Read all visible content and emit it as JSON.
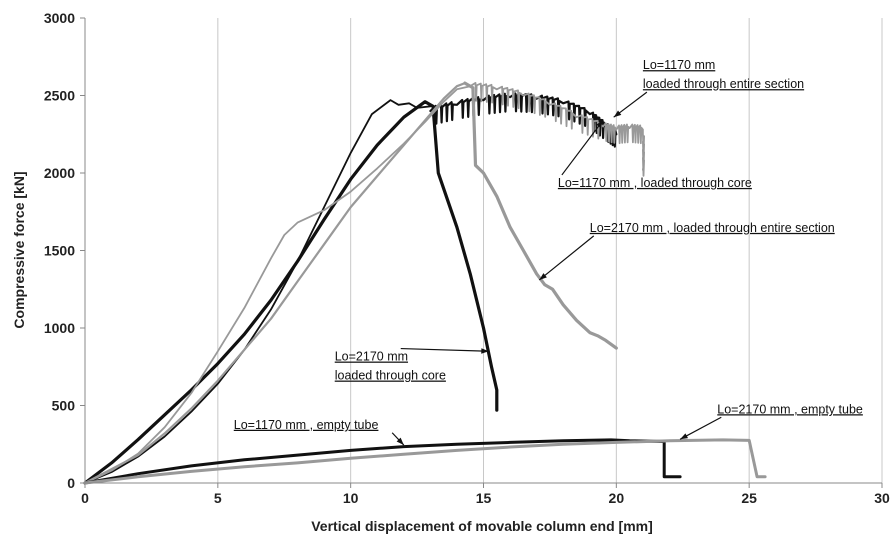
{
  "chart_data": {
    "type": "line",
    "xlabel": "Vertical displacement of movable column end [mm]",
    "ylabel": "Compressive force [kN]",
    "xlim": [
      0,
      30
    ],
    "ylim": [
      0,
      3000
    ],
    "xticks": [
      "0",
      "5",
      "10",
      "15",
      "20",
      "25",
      "30"
    ],
    "yticks": [
      "0",
      "500",
      "1000",
      "1500",
      "2000",
      "2500",
      "3000"
    ],
    "grid": "vertical",
    "legend": "none",
    "colors": {
      "black": "#111111",
      "gray": "#999999"
    },
    "series": [
      {
        "color": "black",
        "width": 3.2,
        "jagged": false,
        "x": [
          0,
          1,
          2,
          3,
          4,
          5,
          6,
          7,
          8,
          9,
          10,
          11,
          12,
          12.8,
          13.1,
          13.3,
          13.6,
          14.0,
          14.5,
          15.0,
          15.3,
          15.5,
          15.5
        ],
        "y": [
          0,
          130,
          280,
          440,
          600,
          770,
          960,
          1180,
          1430,
          1700,
          1960,
          2180,
          2360,
          2460,
          2430,
          2000,
          1850,
          1650,
          1350,
          1000,
          750,
          600,
          470
        ]
      },
      {
        "color": "black",
        "width": 1.8,
        "jagged": false,
        "x": [
          0,
          1,
          2,
          3,
          4,
          5,
          6,
          7,
          8,
          9,
          10,
          10.8,
          11.5,
          11.8,
          12.2,
          12.5,
          13.0
        ],
        "y": [
          0,
          70,
          170,
          300,
          460,
          640,
          860,
          1120,
          1430,
          1780,
          2130,
          2380,
          2470,
          2440,
          2450,
          2420,
          2430
        ]
      },
      {
        "color": "black",
        "width": 2.2,
        "jagged": true,
        "x": [
          13.0,
          14,
          15,
          16,
          17,
          18,
          19,
          19.6,
          20.0
        ],
        "y": [
          2400,
          2440,
          2470,
          2490,
          2480,
          2450,
          2380,
          2300,
          2250
        ]
      },
      {
        "color": "gray",
        "width": 2.2,
        "jagged": false,
        "x": [
          0,
          1,
          2,
          3,
          4,
          5,
          6,
          7,
          8,
          9,
          10,
          11,
          12,
          12.8,
          13.5,
          14.0,
          14.3
        ],
        "y": [
          0,
          90,
          180,
          320,
          480,
          660,
          860,
          1060,
          1300,
          1540,
          1780,
          1980,
          2180,
          2340,
          2480,
          2560,
          2580
        ]
      },
      {
        "color": "gray",
        "width": 3.2,
        "jagged": false,
        "x": [
          14.3,
          14.6,
          14.7,
          15.0,
          15.5,
          16.0,
          16.5,
          17.0,
          17.3,
          17.6,
          18.0,
          18.5,
          19.0,
          19.3,
          19.6,
          20.0
        ],
        "y": [
          2580,
          2550,
          2050,
          2000,
          1850,
          1650,
          1500,
          1350,
          1280,
          1250,
          1150,
          1050,
          970,
          950,
          920,
          870
        ]
      },
      {
        "color": "gray",
        "width": 1.8,
        "jagged": false,
        "x": [
          0,
          1,
          2,
          3,
          4,
          5,
          6,
          7,
          7.5,
          8,
          9,
          10,
          11,
          12,
          12.8,
          13.5,
          14.0,
          14.5
        ],
        "y": [
          0,
          80,
          190,
          360,
          580,
          850,
          1130,
          1450,
          1600,
          1680,
          1760,
          1880,
          2030,
          2190,
          2330,
          2460,
          2540,
          2560
        ]
      },
      {
        "color": "gray",
        "width": 1.8,
        "jagged": true,
        "x": [
          14.5,
          15.5,
          16.5,
          17.5,
          18.5,
          19.5,
          20.0,
          20.5,
          21.0,
          21.0
        ],
        "y": [
          2560,
          2540,
          2500,
          2440,
          2360,
          2300,
          2280,
          2290,
          2280,
          2020
        ]
      },
      {
        "color": "black",
        "width": 3.0,
        "jagged": false,
        "x": [
          0,
          2,
          4,
          6,
          8,
          10,
          12,
          14,
          16,
          18,
          19.8,
          20.5,
          21.8,
          21.8,
          22.4
        ],
        "y": [
          0,
          60,
          110,
          150,
          180,
          210,
          235,
          250,
          262,
          272,
          278,
          272,
          268,
          40,
          40
        ]
      },
      {
        "color": "gray",
        "width": 3.0,
        "jagged": false,
        "x": [
          0,
          2,
          4,
          6,
          8,
          10,
          12,
          14,
          16,
          18,
          20,
          22,
          24,
          25.0,
          25.3,
          25.6
        ],
        "y": [
          0,
          40,
          75,
          105,
          130,
          160,
          185,
          210,
          232,
          250,
          262,
          272,
          278,
          275,
          40,
          40
        ]
      }
    ],
    "annotations": [
      {
        "lines": [
          "Lo=1170 mm",
          "loaded  through  entire  section"
        ],
        "tx": 21.0,
        "ty": 2670,
        "ax": 19.9,
        "ay": 2360
      },
      {
        "lines": [
          "Lo=1170 mm ,  loaded  through  core"
        ],
        "tx": 17.8,
        "ty": 1910,
        "ax": 19.5,
        "ay": 2340
      },
      {
        "lines": [
          "Lo=2170 mm ,  loaded  through  entire  section"
        ],
        "tx": 19.0,
        "ty": 1620,
        "ax": 17.1,
        "ay": 1310
      },
      {
        "lines": [
          "Lo=2170 mm",
          "loaded  through  core"
        ],
        "tx": 9.4,
        "ty": 790,
        "ax": 15.2,
        "ay": 850
      },
      {
        "lines": [
          "Lo=1170 mm ,  empty tube"
        ],
        "tx": 5.6,
        "ty": 350,
        "ax": 12.0,
        "ay": 245
      },
      {
        "lines": [
          "Lo=2170 mm ,  empty tube"
        ],
        "tx": 23.8,
        "ty": 450,
        "ax": 22.4,
        "ay": 282
      }
    ]
  }
}
